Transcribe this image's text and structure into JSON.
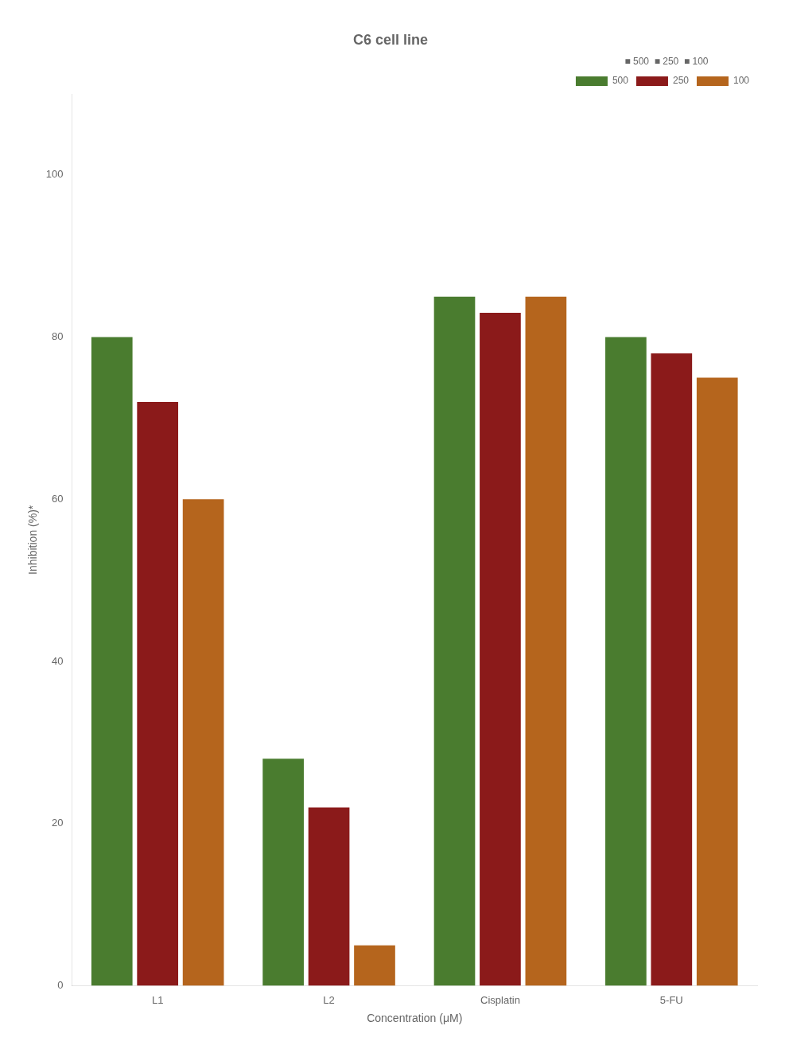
{
  "chart_data": {
    "type": "bar",
    "title": "C6 cell line",
    "categories": [
      "L1",
      "L2",
      "Cisplatin",
      "5-FU"
    ],
    "series": [
      {
        "name": "500",
        "color": "#4a7c2f",
        "values": [
          80,
          28,
          85,
          80
        ]
      },
      {
        "name": "250",
        "color": "#8b1a1a",
        "values": [
          72,
          22,
          83,
          78
        ]
      },
      {
        "name": "100",
        "color": "#b5651d",
        "values": [
          60,
          5,
          85,
          75
        ]
      }
    ],
    "x_label": "Concentration (μM)",
    "y_label": "Inhibition (%)*",
    "ylim": [
      0,
      110
    ],
    "yticks": [
      0,
      20,
      40,
      60,
      80,
      100
    ],
    "grid": false,
    "legend": "upper right",
    "annotations": [
      "■ 500  ■ 250  ■ 100"
    ]
  }
}
